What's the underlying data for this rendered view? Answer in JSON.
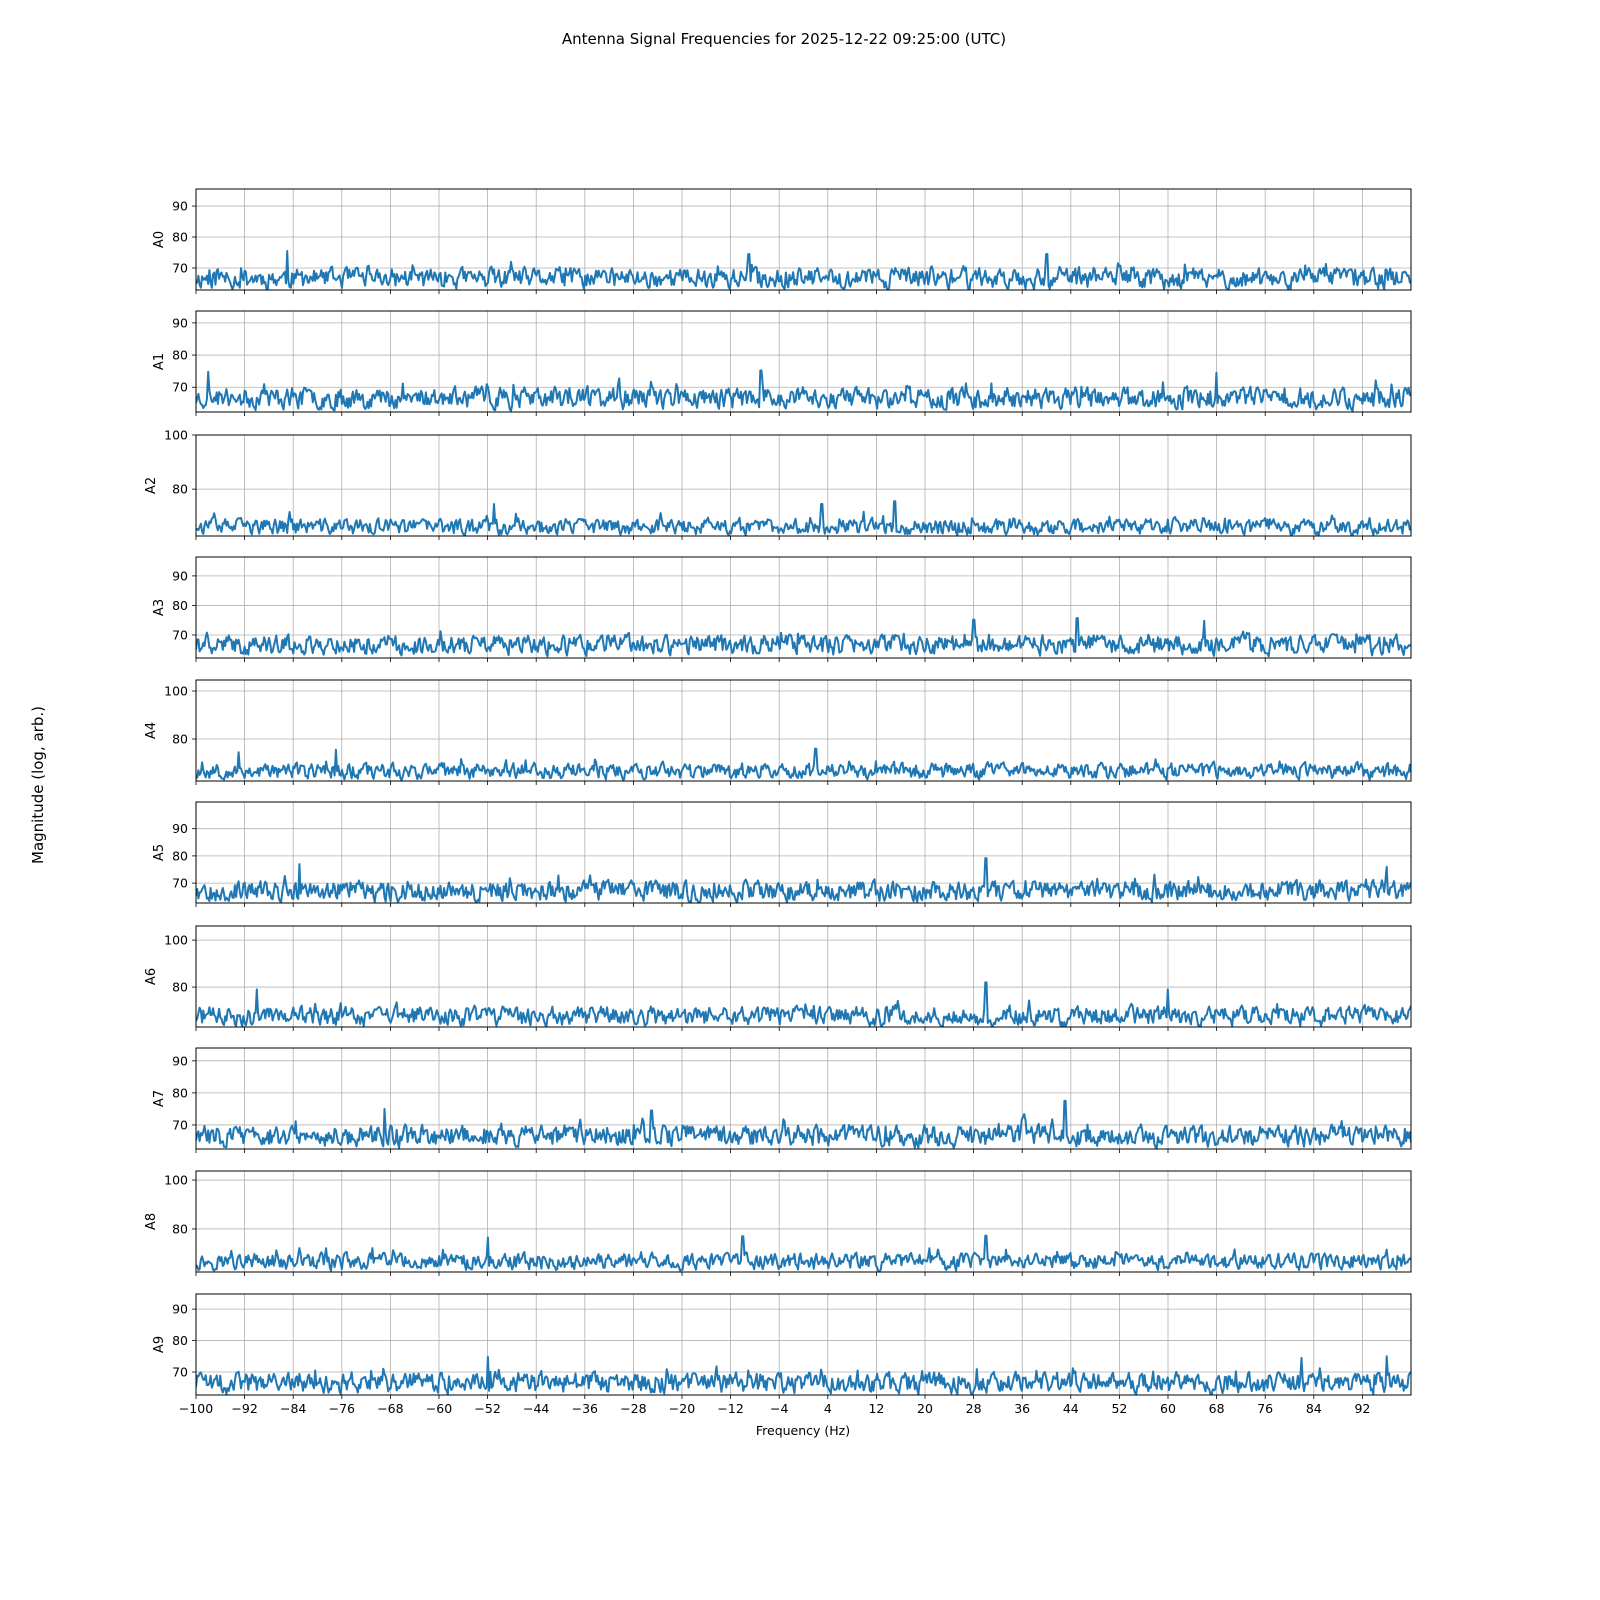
{
  "chart_data": {
    "type": "line",
    "title": "Antenna Signal Frequencies for 2025-12-22 09:25:00 (UTC)",
    "xlabel": "Frequency (Hz)",
    "ylabel": "Magnitude (log, arb.)",
    "xlim": [
      -100,
      100
    ],
    "xticks": [
      -100,
      -92,
      -84,
      -76,
      -68,
      -60,
      -52,
      -44,
      -36,
      -28,
      -20,
      -12,
      -4,
      4,
      12,
      20,
      28,
      36,
      44,
      52,
      60,
      68,
      76,
      84,
      92
    ],
    "grid": true,
    "color": "#1f77b4",
    "points_per_series": 1000,
    "series": [
      {
        "name": "A0",
        "ylim": [
          62.9,
          95.5
        ],
        "yticks": [
          70,
          80,
          90
        ],
        "floor": 63,
        "typical_max": 71,
        "peaks": [
          [
            -85,
            75.5
          ],
          [
            -9,
            74.5
          ],
          [
            40,
            74.5
          ]
        ],
        "seed": 11
      },
      {
        "name": "A1",
        "ylim": [
          62.3,
          93.7
        ],
        "yticks": [
          70,
          80,
          90
        ],
        "floor": 63,
        "typical_max": 71,
        "peaks": [
          [
            -7,
            75.2
          ],
          [
            -98,
            74.8
          ],
          [
            68,
            74.5
          ]
        ],
        "seed": 23
      },
      {
        "name": "A2",
        "ylim": [
          62.7,
          100
        ],
        "yticks": [
          80,
          100
        ],
        "floor": 63,
        "typical_max": 70,
        "peaks": [
          [
            15,
            75.5
          ],
          [
            3,
            74.5
          ],
          [
            -51,
            74.5
          ]
        ],
        "seed": 37
      },
      {
        "name": "A3",
        "ylim": [
          62.2,
          96.4
        ],
        "yticks": [
          70,
          80,
          90
        ],
        "floor": 63,
        "typical_max": 71,
        "peaks": [
          [
            45,
            75.7
          ],
          [
            28,
            75.2
          ],
          [
            66,
            74.8
          ]
        ],
        "seed": 41
      },
      {
        "name": "A4",
        "ylim": [
          62.5,
          104.6
        ],
        "yticks": [
          80,
          100
        ],
        "floor": 63,
        "typical_max": 71,
        "peaks": [
          [
            2,
            76
          ],
          [
            -77,
            75.5
          ],
          [
            -93,
            74.5
          ]
        ],
        "seed": 53
      },
      {
        "name": "A5",
        "ylim": [
          62.7,
          99.8
        ],
        "yticks": [
          70,
          80,
          90
        ],
        "floor": 63,
        "typical_max": 72,
        "peaks": [
          [
            30,
            79.2
          ],
          [
            -83,
            77
          ],
          [
            96,
            76
          ]
        ],
        "seed": 67
      },
      {
        "name": "A6",
        "ylim": [
          63,
          106
        ],
        "yticks": [
          80,
          100
        ],
        "floor": 63,
        "typical_max": 73,
        "peaks": [
          [
            30,
            82
          ],
          [
            -90,
            79
          ],
          [
            60,
            79
          ]
        ],
        "seed": 71
      },
      {
        "name": "A7",
        "ylim": [
          62.5,
          94
        ],
        "yticks": [
          70,
          80,
          90
        ],
        "floor": 63,
        "typical_max": 71,
        "peaks": [
          [
            43,
            77.5
          ],
          [
            -69,
            75
          ],
          [
            -25,
            74.5
          ]
        ],
        "seed": 83
      },
      {
        "name": "A8",
        "ylim": [
          62.4,
          103.7
        ],
        "yticks": [
          80,
          100
        ],
        "floor": 63,
        "typical_max": 71,
        "peaks": [
          [
            -10,
            77
          ],
          [
            30,
            77.2
          ],
          [
            -52,
            76.5
          ]
        ],
        "seed": 97
      },
      {
        "name": "A9",
        "ylim": [
          62.7,
          94.8
        ],
        "yticks": [
          70,
          80,
          90
        ],
        "floor": 63,
        "typical_max": 71,
        "peaks": [
          [
            96,
            75
          ],
          [
            -52,
            74.8
          ],
          [
            82,
            74.5
          ]
        ],
        "seed": 101
      }
    ]
  }
}
